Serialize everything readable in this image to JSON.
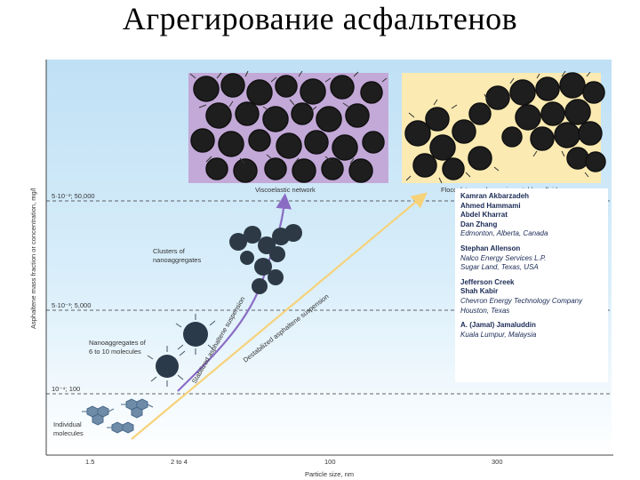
{
  "title": "Агрегирование асфальтенов",
  "chart": {
    "ylabel": "Asphaltene mass fraction or concentration, mg/l",
    "xlabel": "Particle size, nm",
    "x_ticks": [
      "1.5",
      "2 to 4",
      "100",
      "300"
    ],
    "y_ticks": [
      "5·10⁻²; 50,000",
      "5·10⁻³; 5,000",
      "10⁻⁴; 100"
    ],
    "labels": {
      "viscoelastic": "Viscoelastic network",
      "flocculates": "Flocculates no longer in a stable colloid",
      "clusters": "Clusters of\nnanoaggregates",
      "nanoaggregates": "Nanoaggregates of\n6 to 10 molecules",
      "individual": "Individual\nmolecules",
      "stabilized": "Stabilized asphaltene suspension",
      "destabilized": "Destabilized asphaltene suspension"
    },
    "colors": {
      "background_top": "#bfe0f5",
      "background_bottom": "#ffffff",
      "stabilized_arrow": "#8a6cc4",
      "destabilized_arrow": "#f6d27a",
      "panel_left": "#c3a9d8",
      "panel_right": "#fbeab2"
    }
  },
  "authors": [
    {
      "names": [
        "Kamran Akbarzadeh",
        "Ahmed Hammami",
        "Abdel Kharrat",
        "Dan Zhang"
      ],
      "location": "Edmonton, Alberta, Canada"
    },
    {
      "names": [
        "Stephan Allenson"
      ],
      "location": "Nalco Energy Services L.P.\nSugar Land, Texas, USA"
    },
    {
      "names": [
        "Jefferson Creek",
        "Shah Kabir"
      ],
      "location": "Chevron Energy Technology Company\nHouston, Texas"
    },
    {
      "names": [
        "A. (Jamal) Jamaluddin"
      ],
      "location": "Kuala Lumpur, Malaysia"
    }
  ]
}
